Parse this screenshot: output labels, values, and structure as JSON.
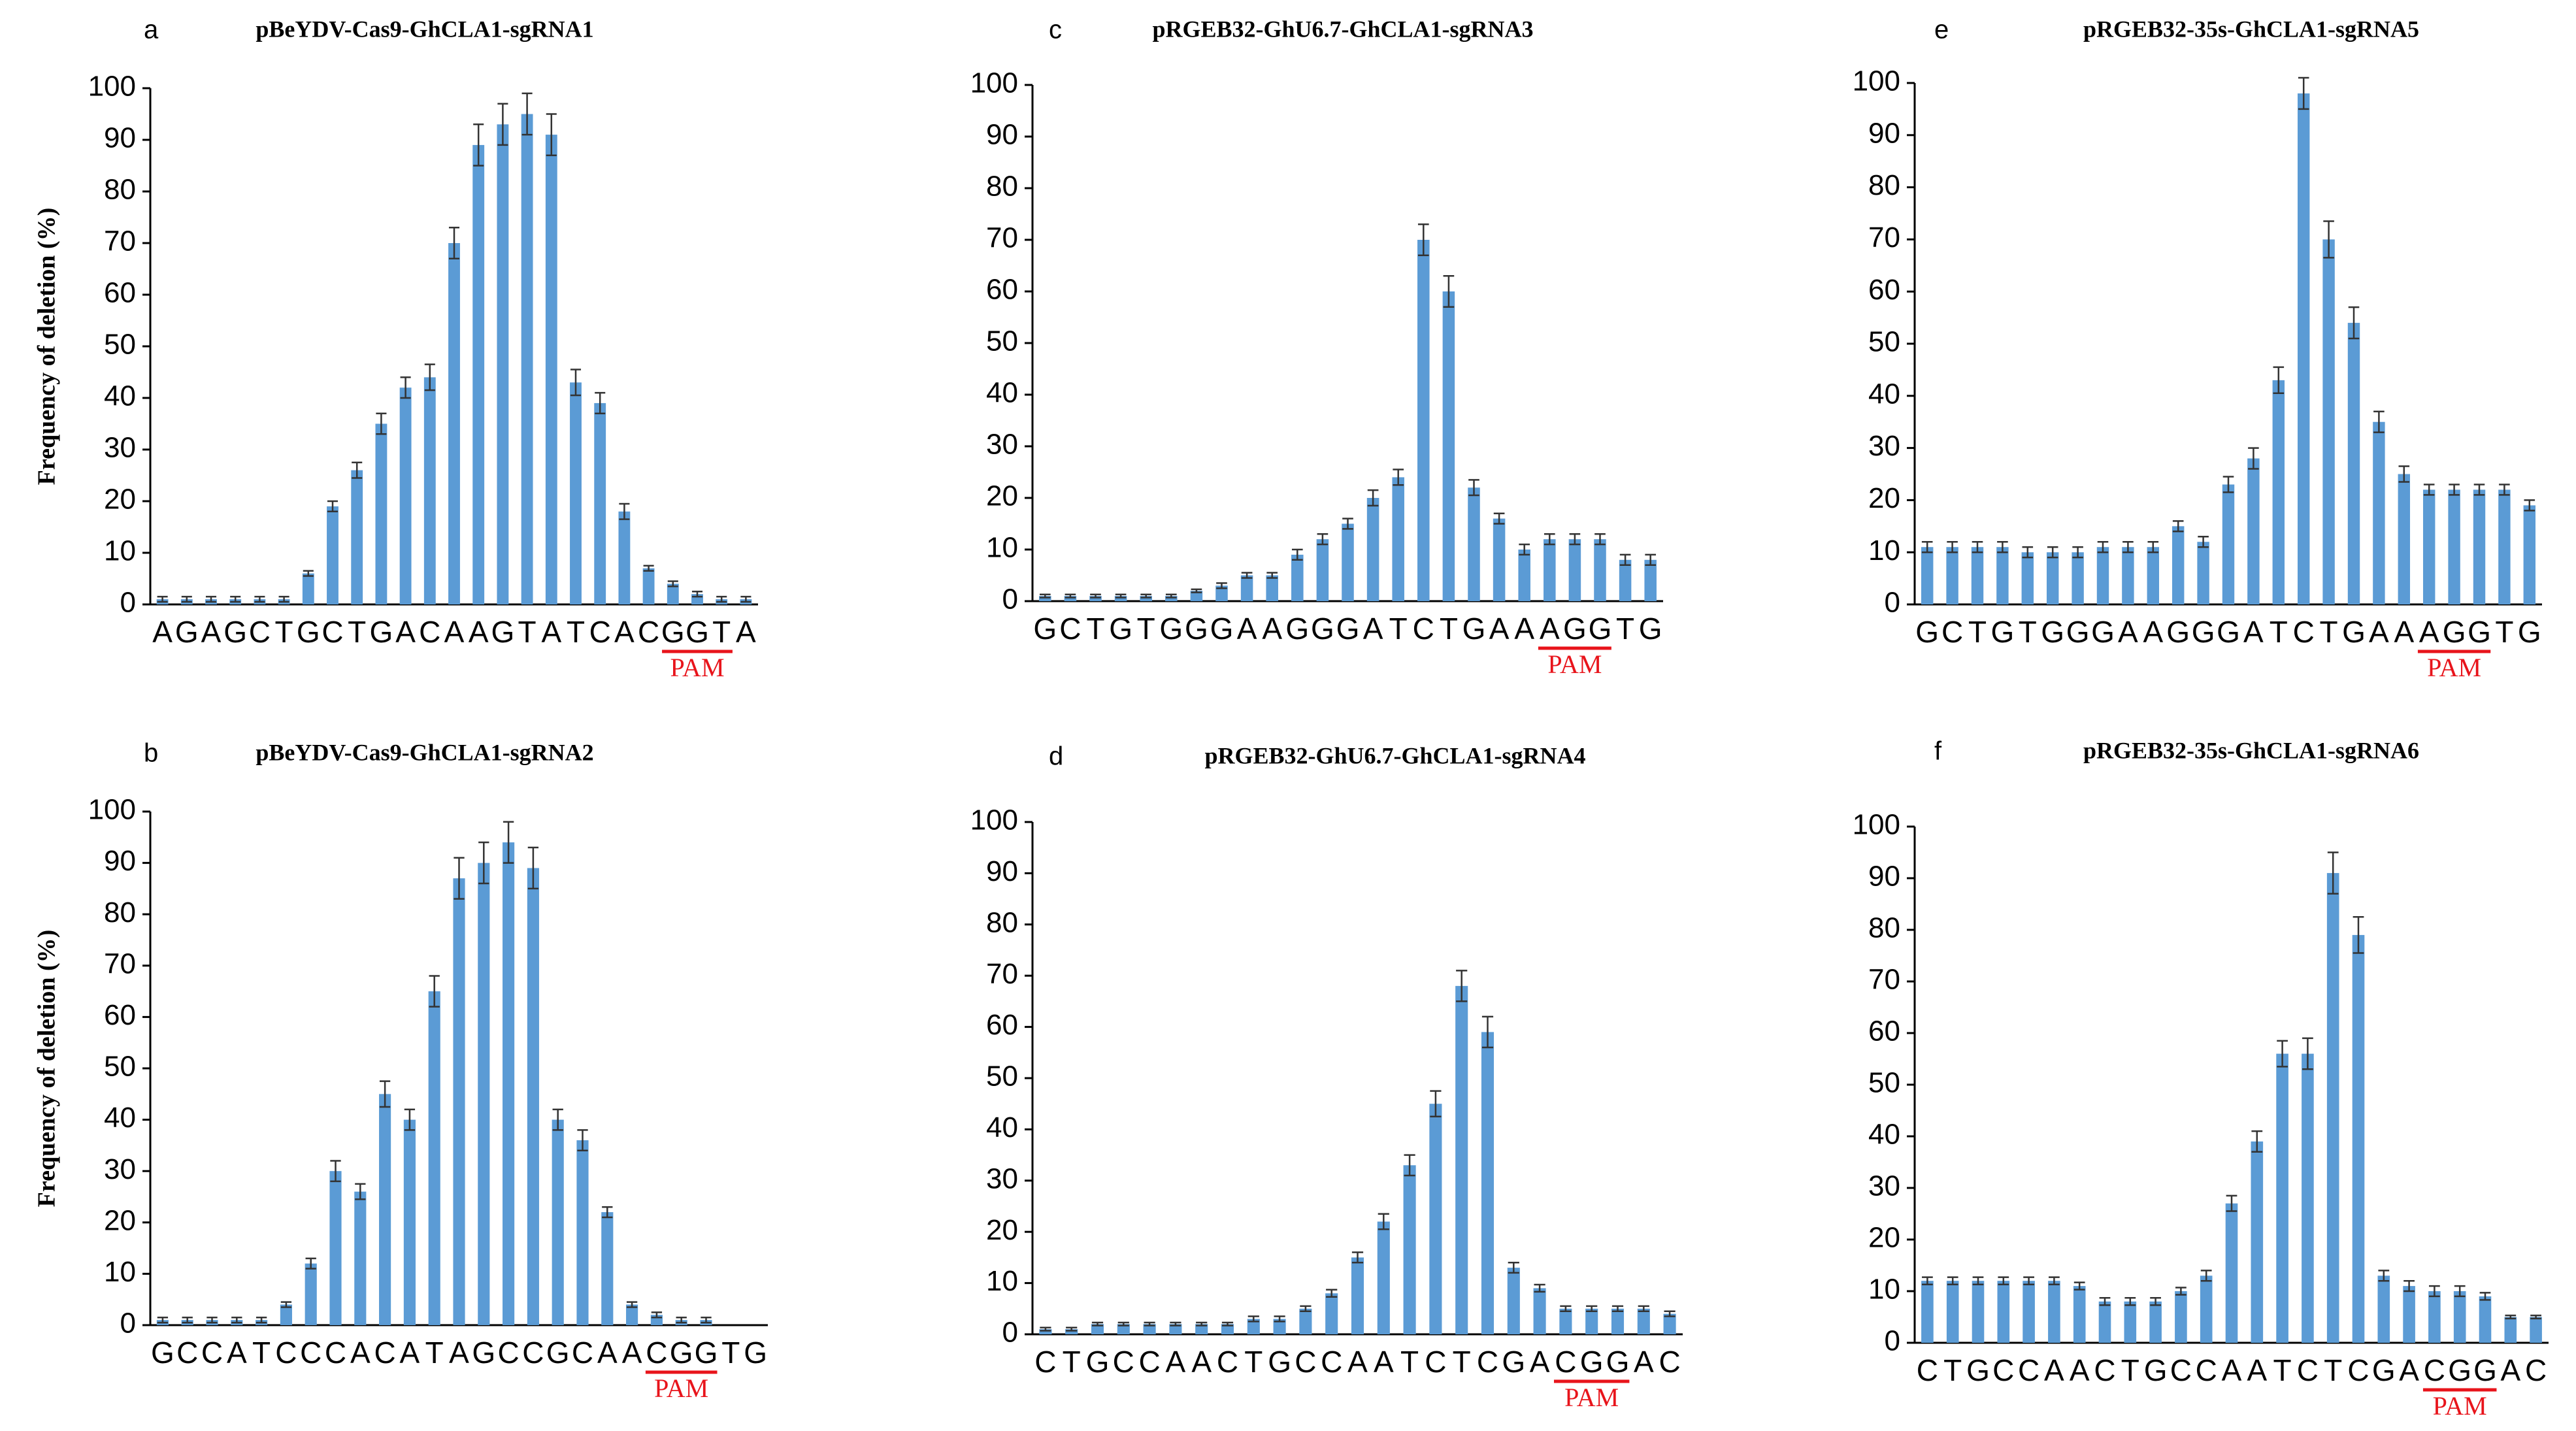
{
  "colors": {
    "bar": "#5b9bd5",
    "axis": "#000000",
    "error_bar": "#333333",
    "pam": "#e8141b"
  },
  "chart_data": [
    {
      "type": "bar",
      "panel": "a",
      "title": "pBeYDV-Cas9-GhCLA1-sgRNA1",
      "ylabel": "Frequency of deletion (%)",
      "ylim": [
        0,
        100
      ],
      "yticks": [
        0,
        10,
        20,
        30,
        40,
        50,
        60,
        70,
        80,
        90,
        100
      ],
      "categories": [
        "A",
        "G",
        "A",
        "G",
        "C",
        "T",
        "G",
        "C",
        "T",
        "G",
        "A",
        "C",
        "A",
        "A",
        "G",
        "T",
        "A",
        "T",
        "C",
        "A",
        "C",
        "G",
        "G",
        "T",
        "A"
      ],
      "values": [
        1,
        1,
        1,
        1,
        1,
        1,
        6,
        19,
        26,
        35,
        42,
        44,
        70,
        89,
        93,
        95,
        91,
        43,
        39,
        18,
        7,
        4,
        2,
        1,
        1
      ],
      "errors": [
        0.5,
        0.5,
        0.5,
        0.5,
        0.5,
        0.5,
        0.5,
        1,
        1.5,
        2,
        2,
        2.5,
        3,
        4,
        4,
        4,
        4,
        2.5,
        2,
        1.5,
        0.5,
        0.5,
        0.5,
        0.5,
        0.5
      ],
      "pam": {
        "label": "PAM",
        "start": 21,
        "end": 23
      }
    },
    {
      "type": "bar",
      "panel": "b",
      "title": "pBeYDV-Cas9-GhCLA1-sgRNA2",
      "ylabel": "Frequency of deletion (%)",
      "ylim": [
        0,
        100
      ],
      "yticks": [
        0,
        10,
        20,
        30,
        40,
        50,
        60,
        70,
        80,
        90,
        100
      ],
      "categories": [
        "G",
        "C",
        "C",
        "A",
        "T",
        "C",
        "C",
        "C",
        "A",
        "C",
        "A",
        "T",
        "A",
        "G",
        "C",
        "C",
        "G",
        "C",
        "A",
        "A",
        "C",
        "G",
        "G",
        "T",
        "G"
      ],
      "values": [
        1,
        1,
        1,
        1,
        1,
        4,
        12,
        30,
        26,
        45,
        40,
        65,
        87,
        90,
        94,
        89,
        40,
        36,
        22,
        4,
        2,
        1,
        1,
        0,
        0
      ],
      "errors": [
        0.5,
        0.5,
        0.5,
        0.5,
        0.5,
        0.5,
        1,
        2,
        1.5,
        2.5,
        2,
        3,
        4,
        4,
        4,
        4,
        2,
        2,
        1,
        0.5,
        0.5,
        0.5,
        0.5,
        0,
        0
      ],
      "pam": {
        "label": "PAM",
        "start": 20,
        "end": 22
      }
    },
    {
      "type": "bar",
      "panel": "c",
      "title": "pRGEB32-GhU6.7-GhCLA1-sgRNA3",
      "ylabel": "",
      "ylim": [
        0,
        100
      ],
      "yticks": [
        0,
        10,
        20,
        30,
        40,
        50,
        60,
        70,
        80,
        90,
        100
      ],
      "categories": [
        "G",
        "C",
        "T",
        "G",
        "T",
        "G",
        "G",
        "G",
        "A",
        "A",
        "G",
        "G",
        "G",
        "A",
        "T",
        "C",
        "T",
        "G",
        "A",
        "A",
        "A",
        "G",
        "G",
        "T",
        "G"
      ],
      "values": [
        1,
        1,
        1,
        1,
        1,
        1,
        2,
        3,
        5,
        5,
        9,
        12,
        15,
        20,
        24,
        70,
        60,
        22,
        16,
        10,
        12,
        12,
        12,
        8,
        8
      ],
      "errors": [
        0.3,
        0.3,
        0.3,
        0.3,
        0.3,
        0.3,
        0.3,
        0.5,
        0.5,
        0.5,
        1,
        1,
        1,
        1.5,
        1.5,
        3,
        3,
        1.5,
        1,
        1,
        1,
        1,
        1,
        1,
        1
      ],
      "pam": {
        "label": "PAM",
        "start": 20,
        "end": 22
      }
    },
    {
      "type": "bar",
      "panel": "d",
      "title": "pRGEB32-GhU6.7-GhCLA1-sgRNA4",
      "ylabel": "",
      "ylim": [
        0,
        100
      ],
      "yticks": [
        0,
        10,
        20,
        30,
        40,
        50,
        60,
        70,
        80,
        90,
        100
      ],
      "categories": [
        "C",
        "T",
        "G",
        "C",
        "C",
        "A",
        "A",
        "C",
        "T",
        "G",
        "C",
        "C",
        "A",
        "A",
        "T",
        "C",
        "T",
        "C",
        "G",
        "A",
        "C",
        "G",
        "G",
        "A",
        "C"
      ],
      "values": [
        1,
        1,
        2,
        2,
        2,
        2,
        2,
        2,
        3,
        3,
        5,
        8,
        15,
        22,
        33,
        45,
        68,
        59,
        13,
        9,
        5,
        5,
        5,
        5,
        4
      ],
      "errors": [
        0.3,
        0.3,
        0.3,
        0.3,
        0.3,
        0.3,
        0.3,
        0.3,
        0.5,
        0.5,
        0.5,
        0.7,
        1,
        1.5,
        2,
        2.5,
        3,
        3,
        1,
        0.7,
        0.5,
        0.5,
        0.5,
        0.5,
        0.5
      ],
      "pam": {
        "label": "PAM",
        "start": 20,
        "end": 22
      }
    },
    {
      "type": "bar",
      "panel": "e",
      "title": "pRGEB32-35s-GhCLA1-sgRNA5",
      "ylabel": "",
      "ylim": [
        0,
        100
      ],
      "yticks": [
        0,
        10,
        20,
        30,
        40,
        50,
        60,
        70,
        80,
        90,
        100
      ],
      "categories": [
        "G",
        "C",
        "T",
        "G",
        "T",
        "G",
        "G",
        "G",
        "A",
        "A",
        "G",
        "G",
        "G",
        "A",
        "T",
        "C",
        "T",
        "G",
        "A",
        "A",
        "A",
        "G",
        "G",
        "T",
        "G"
      ],
      "values": [
        11,
        11,
        11,
        11,
        10,
        10,
        10,
        11,
        11,
        11,
        15,
        12,
        23,
        28,
        43,
        98,
        70,
        54,
        35,
        25,
        22,
        22,
        22,
        22,
        19
      ],
      "errors": [
        1,
        1,
        1,
        1,
        1,
        1,
        1,
        1,
        1,
        1,
        1,
        1,
        1.5,
        2,
        2.5,
        3,
        3.5,
        3,
        2,
        1.5,
        1,
        1,
        1,
        1,
        1
      ],
      "pam": {
        "label": "PAM",
        "start": 20,
        "end": 22
      }
    },
    {
      "type": "bar",
      "panel": "f",
      "title": "pRGEB32-35s-GhCLA1-sgRNA6",
      "ylabel": "",
      "ylim": [
        0,
        100
      ],
      "yticks": [
        0,
        10,
        20,
        30,
        40,
        50,
        60,
        70,
        80,
        90,
        100
      ],
      "categories": [
        "C",
        "T",
        "G",
        "C",
        "C",
        "A",
        "A",
        "C",
        "T",
        "G",
        "C",
        "C",
        "A",
        "A",
        "T",
        "C",
        "T",
        "C",
        "G",
        "A",
        "C",
        "G",
        "G",
        "A",
        "C"
      ],
      "values": [
        12,
        12,
        12,
        12,
        12,
        12,
        11,
        8,
        8,
        8,
        10,
        13,
        27,
        39,
        56,
        56,
        91,
        79,
        13,
        11,
        10,
        10,
        9,
        5,
        5
      ],
      "errors": [
        0.7,
        0.7,
        0.7,
        0.7,
        0.7,
        0.7,
        0.7,
        0.7,
        0.7,
        0.7,
        0.7,
        1,
        1.5,
        2,
        2.5,
        3,
        4,
        3.5,
        1,
        1,
        1,
        1,
        0.7,
        0.3,
        0.3
      ],
      "pam": {
        "label": "PAM",
        "start": 20,
        "end": 22
      }
    }
  ]
}
